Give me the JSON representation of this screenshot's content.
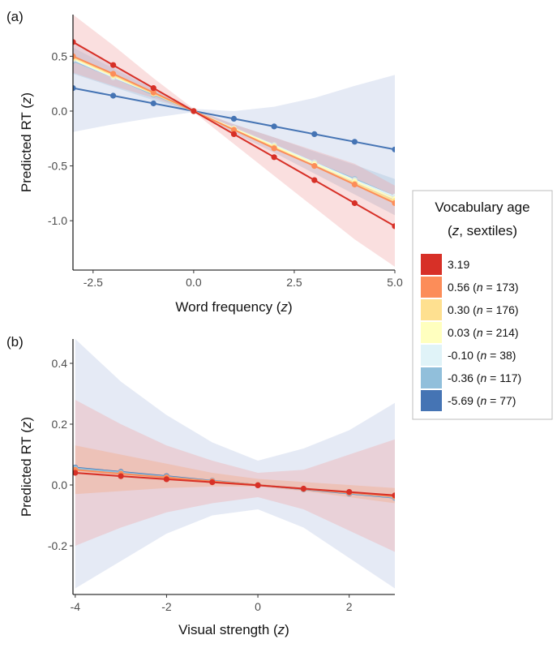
{
  "chart_data": [
    {
      "panel": "(a)",
      "type": "line",
      "xlabel": "Word frequency",
      "xlabel_var": "z",
      "ylabel": "Predicted RT",
      "ylabel_var": "z",
      "xlim": [
        -3.0,
        5.0
      ],
      "ylim": [
        -1.45,
        0.88
      ],
      "xticks": [
        -2.5,
        0.0,
        2.5,
        5.0
      ],
      "xtick_labels": [
        "-2.5",
        "0.0",
        "2.5",
        "5.0"
      ],
      "yticks": [
        0.5,
        0.0,
        -0.5,
        -1.0
      ],
      "ytick_labels": [
        "0.5",
        "0.0",
        "-0.5",
        "-1.0"
      ],
      "x": [
        -3,
        -2,
        -1,
        0,
        1,
        2,
        3,
        4,
        5
      ],
      "series": [
        {
          "key": "-5.69",
          "color": "#4574b4",
          "values": [
            0.21,
            0.14,
            0.07,
            0.0,
            -0.07,
            -0.14,
            -0.21,
            -0.28,
            -0.35
          ],
          "band_lower": [
            -0.19,
            -0.12,
            -0.06,
            -0.01,
            -0.14,
            -0.3,
            -0.48,
            -0.66,
            -0.84
          ],
          "band_upper": [
            0.62,
            0.41,
            0.21,
            0.02,
            0.0,
            0.04,
            0.12,
            0.23,
            0.33
          ]
        },
        {
          "key": "-0.36",
          "color": "#91bfdb",
          "values": [
            0.46,
            0.31,
            0.15,
            0.0,
            -0.16,
            -0.31,
            -0.47,
            -0.62,
            -0.78
          ],
          "band_lower": [
            0.34,
            0.22,
            0.1,
            -0.01,
            -0.2,
            -0.38,
            -0.57,
            -0.76,
            -0.95
          ],
          "band_upper": [
            0.58,
            0.39,
            0.2,
            0.01,
            -0.12,
            -0.24,
            -0.37,
            -0.49,
            -0.62
          ]
        },
        {
          "key": "-0.10",
          "color": "#e0f3f8",
          "values": [
            0.47,
            0.31,
            0.16,
            0.0,
            -0.16,
            -0.31,
            -0.47,
            -0.63,
            -0.78
          ]
        },
        {
          "key": "0.03",
          "color": "#ffffbf",
          "values": [
            0.48,
            0.32,
            0.16,
            0.0,
            -0.16,
            -0.32,
            -0.48,
            -0.64,
            -0.8
          ]
        },
        {
          "key": "0.30",
          "color": "#fee090",
          "values": [
            0.49,
            0.33,
            0.16,
            0.0,
            -0.17,
            -0.33,
            -0.5,
            -0.66,
            -0.82
          ]
        },
        {
          "key": "0.56",
          "color": "#fc8d59",
          "values": [
            0.5,
            0.34,
            0.17,
            0.0,
            -0.17,
            -0.34,
            -0.5,
            -0.67,
            -0.84
          ]
        },
        {
          "key": "3.19",
          "color": "#d73027",
          "values": [
            0.63,
            0.42,
            0.21,
            0.0,
            -0.21,
            -0.42,
            -0.63,
            -0.84,
            -1.05
          ],
          "band_lower": [
            0.35,
            0.23,
            0.12,
            -0.01,
            -0.3,
            -0.59,
            -0.88,
            -1.17,
            -1.42
          ],
          "band_upper": [
            0.88,
            0.6,
            0.3,
            0.02,
            -0.12,
            -0.24,
            -0.36,
            -0.48,
            -0.68
          ]
        }
      ]
    },
    {
      "panel": "(b)",
      "type": "line",
      "xlabel": "Visual strength",
      "xlabel_var": "z",
      "ylabel": "Predicted RT",
      "ylabel_var": "z",
      "xlim": [
        -4.05,
        3.0
      ],
      "ylim": [
        -0.36,
        0.48
      ],
      "xticks": [
        -4,
        -2,
        0,
        2
      ],
      "xtick_labels": [
        "-4",
        "-2",
        "0",
        "2"
      ],
      "yticks": [
        0.4,
        0.2,
        0.0,
        -0.2
      ],
      "ytick_labels": [
        "0.4",
        "0.2",
        "0.0",
        "-0.2"
      ],
      "x": [
        -4,
        -3,
        -2,
        -1,
        0,
        1,
        2,
        3
      ],
      "series": [
        {
          "key": "-5.69",
          "color": "#4574b4",
          "values": [
            0.057,
            0.043,
            0.029,
            0.014,
            0.0,
            -0.014,
            -0.028,
            -0.042
          ],
          "band_lower": [
            -0.34,
            -0.25,
            -0.16,
            -0.1,
            -0.08,
            -0.14,
            -0.24,
            -0.34
          ],
          "band_upper": [
            0.48,
            0.34,
            0.23,
            0.14,
            0.08,
            0.12,
            0.18,
            0.27
          ]
        },
        {
          "key": "-0.36",
          "color": "#91bfdb",
          "values": [
            0.055,
            0.041,
            0.027,
            0.013,
            0.0,
            -0.013,
            -0.027,
            -0.041
          ]
        },
        {
          "key": "0.56",
          "color": "#fc8d59",
          "values": [
            0.05,
            0.037,
            0.025,
            0.012,
            0.0,
            -0.013,
            -0.025,
            -0.038
          ],
          "band_lower": [
            -0.03,
            -0.02,
            -0.01,
            -0.005,
            -0.005,
            -0.02,
            -0.04,
            -0.06
          ],
          "band_upper": [
            0.13,
            0.1,
            0.07,
            0.04,
            0.02,
            0.01,
            0.0,
            -0.01
          ]
        },
        {
          "key": "3.19",
          "color": "#d73027",
          "values": [
            0.04,
            0.029,
            0.019,
            0.009,
            -0.001,
            -0.012,
            -0.023,
            -0.034
          ],
          "band_lower": [
            -0.2,
            -0.14,
            -0.09,
            -0.06,
            -0.04,
            -0.08,
            -0.15,
            -0.22
          ],
          "band_upper": [
            0.28,
            0.2,
            0.13,
            0.08,
            0.04,
            0.05,
            0.1,
            0.15
          ]
        }
      ]
    }
  ],
  "legend": {
    "title_line1": "Vocabulary age",
    "title_var": "z",
    "title_rest": ", sextiles)",
    "placement": "right",
    "items": [
      {
        "value": "3.19",
        "n": "",
        "color": "#d73027"
      },
      {
        "value": "0.56",
        "n": "173",
        "color": "#fc8d59"
      },
      {
        "value": "0.30",
        "n": "176",
        "color": "#fee090"
      },
      {
        "value": "0.03",
        "n": "214",
        "color": "#ffffbf"
      },
      {
        "value": "-0.10",
        "n": "38",
        "color": "#e0f3f8"
      },
      {
        "value": "-0.36",
        "n": "117",
        "color": "#91bfdb"
      },
      {
        "value": "-5.69",
        "n": "77",
        "color": "#4574b4"
      }
    ]
  }
}
